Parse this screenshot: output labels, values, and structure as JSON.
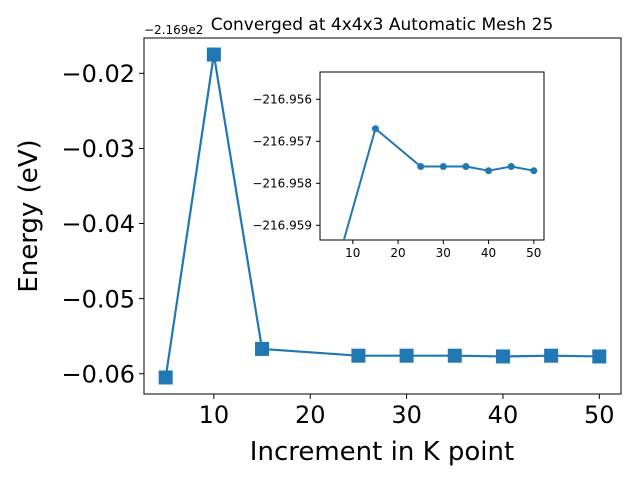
{
  "chart_data": [
    {
      "type": "line",
      "title": "Converged at 4x4x3 Automatic Mesh 25",
      "xlabel": "Increment in K point",
      "ylabel": "Energy (eV)",
      "offset_label": "−2.169e2",
      "x": [
        5,
        10,
        15,
        25,
        30,
        35,
        40,
        45,
        50
      ],
      "series": [
        {
          "values": [
            -0.0605,
            -0.0175,
            -0.0567,
            -0.0576,
            -0.0576,
            -0.0576,
            -0.0577,
            -0.0576,
            -0.0577
          ]
        }
      ],
      "xlim": [
        2.75,
        52.25
      ],
      "ylim": [
        -0.0627,
        -0.0153
      ],
      "xticks": [
        10,
        20,
        30,
        40,
        50
      ],
      "xtick_labels": [
        "10",
        "20",
        "30",
        "40",
        "50"
      ],
      "yticks": [
        -0.06,
        -0.05,
        -0.04,
        -0.03,
        -0.02
      ],
      "ytick_labels": [
        "−0.06",
        "−0.05",
        "−0.04",
        "−0.03",
        "−0.02"
      ],
      "marker": "square",
      "color": "#1f77b4",
      "grid": false
    },
    {
      "type": "line",
      "title": "",
      "xlabel": "",
      "ylabel": "",
      "x": [
        5,
        15,
        25,
        30,
        35,
        40,
        45,
        50
      ],
      "series": [
        {
          "values": [
            -216.9605,
            -216.9567,
            -216.9576,
            -216.9576,
            -216.9576,
            -216.9577,
            -216.9576,
            -216.9577
          ]
        }
      ],
      "xlim": [
        2.75,
        52.25
      ],
      "ylim": [
        -216.95935,
        -216.95535
      ],
      "xticks": [
        10,
        20,
        30,
        40,
        50
      ],
      "xtick_labels": [
        "10",
        "20",
        "30",
        "40",
        "50"
      ],
      "yticks": [
        -216.959,
        -216.958,
        -216.957,
        -216.956
      ],
      "ytick_labels": [
        "−216.959",
        "−216.958",
        "−216.957",
        "−216.956"
      ],
      "marker": "circle",
      "color": "#1f77b4",
      "grid": false
    }
  ]
}
